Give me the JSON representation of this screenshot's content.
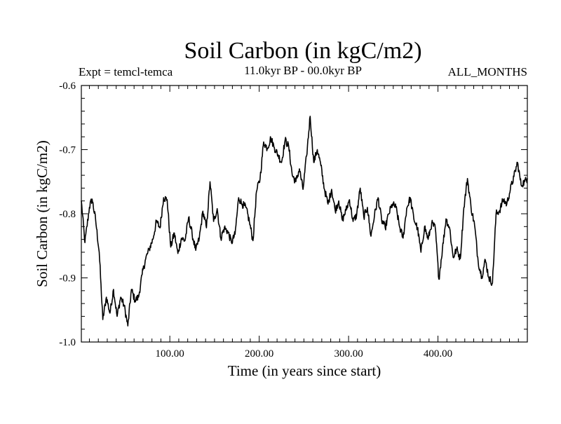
{
  "chart_data": {
    "type": "line",
    "title": "Soil Carbon (in kgC/m2)",
    "left_caption": "Expt = temcl-temca",
    "center_caption": "11.0kyr BP - 00.0kyr BP",
    "right_caption": "ALL_MONTHS",
    "xlabel": "Time (in years since start)",
    "ylabel": "Soil Carbon (in kgC/m2)",
    "xlim": [
      1,
      500
    ],
    "ylim": [
      -1.0,
      -0.6
    ],
    "x_ticks": [
      100,
      200,
      300,
      400
    ],
    "x_tick_labels": [
      "100.00",
      "200.00",
      "300.00",
      "400.00"
    ],
    "y_ticks": [
      -1.0,
      -0.9,
      -0.8,
      -0.7,
      -0.6
    ],
    "y_tick_labels": [
      "-1.0",
      "-0.9",
      "-0.8",
      "-0.7",
      "-0.6"
    ],
    "series": [
      {
        "name": "Soil Carbon",
        "color": "#000000",
        "x": [
          1,
          5,
          10,
          13,
          17,
          21,
          25,
          29,
          33,
          37,
          41,
          45,
          49,
          53,
          57,
          61,
          65,
          69,
          73,
          77,
          81,
          85,
          89,
          93,
          97,
          101,
          105,
          109,
          113,
          117,
          121,
          125,
          129,
          133,
          137,
          141,
          145,
          149,
          153,
          157,
          161,
          165,
          169,
          173,
          177,
          181,
          185,
          189,
          193,
          197,
          201,
          205,
          209,
          213,
          217,
          221,
          225,
          229,
          233,
          237,
          241,
          245,
          249,
          253,
          257,
          261,
          265,
          269,
          273,
          277,
          281,
          285,
          289,
          293,
          297,
          301,
          305,
          309,
          313,
          317,
          321,
          325,
          329,
          333,
          337,
          341,
          345,
          349,
          353,
          357,
          361,
          365,
          369,
          373,
          377,
          381,
          385,
          389,
          393,
          397,
          401,
          405,
          409,
          413,
          417,
          421,
          425,
          429,
          433,
          437,
          441,
          445,
          449,
          453,
          457,
          461,
          465,
          469,
          473,
          477,
          481,
          485,
          489,
          493,
          497,
          500
        ],
        "values": [
          -0.78,
          -0.845,
          -0.79,
          -0.777,
          -0.81,
          -0.86,
          -0.965,
          -0.93,
          -0.955,
          -0.918,
          -0.96,
          -0.93,
          -0.944,
          -0.975,
          -0.918,
          -0.935,
          -0.93,
          -0.895,
          -0.87,
          -0.855,
          -0.84,
          -0.812,
          -0.822,
          -0.775,
          -0.778,
          -0.852,
          -0.83,
          -0.862,
          -0.838,
          -0.842,
          -0.806,
          -0.832,
          -0.857,
          -0.838,
          -0.796,
          -0.822,
          -0.75,
          -0.812,
          -0.792,
          -0.838,
          -0.822,
          -0.828,
          -0.845,
          -0.832,
          -0.775,
          -0.785,
          -0.79,
          -0.812,
          -0.842,
          -0.765,
          -0.745,
          -0.688,
          -0.698,
          -0.682,
          -0.697,
          -0.708,
          -0.72,
          -0.685,
          -0.695,
          -0.74,
          -0.75,
          -0.73,
          -0.762,
          -0.71,
          -0.648,
          -0.72,
          -0.7,
          -0.725,
          -0.762,
          -0.785,
          -0.762,
          -0.795,
          -0.78,
          -0.81,
          -0.795,
          -0.778,
          -0.812,
          -0.802,
          -0.76,
          -0.805,
          -0.79,
          -0.835,
          -0.802,
          -0.775,
          -0.81,
          -0.822,
          -0.8,
          -0.785,
          -0.79,
          -0.82,
          -0.838,
          -0.792,
          -0.775,
          -0.808,
          -0.822,
          -0.86,
          -0.82,
          -0.84,
          -0.815,
          -0.822,
          -0.902,
          -0.855,
          -0.808,
          -0.822,
          -0.868,
          -0.855,
          -0.87,
          -0.79,
          -0.745,
          -0.79,
          -0.818,
          -0.875,
          -0.898,
          -0.872,
          -0.9,
          -0.908,
          -0.8,
          -0.795,
          -0.778,
          -0.785,
          -0.762,
          -0.742,
          -0.72,
          -0.755,
          -0.75,
          -0.745
        ]
      }
    ]
  }
}
